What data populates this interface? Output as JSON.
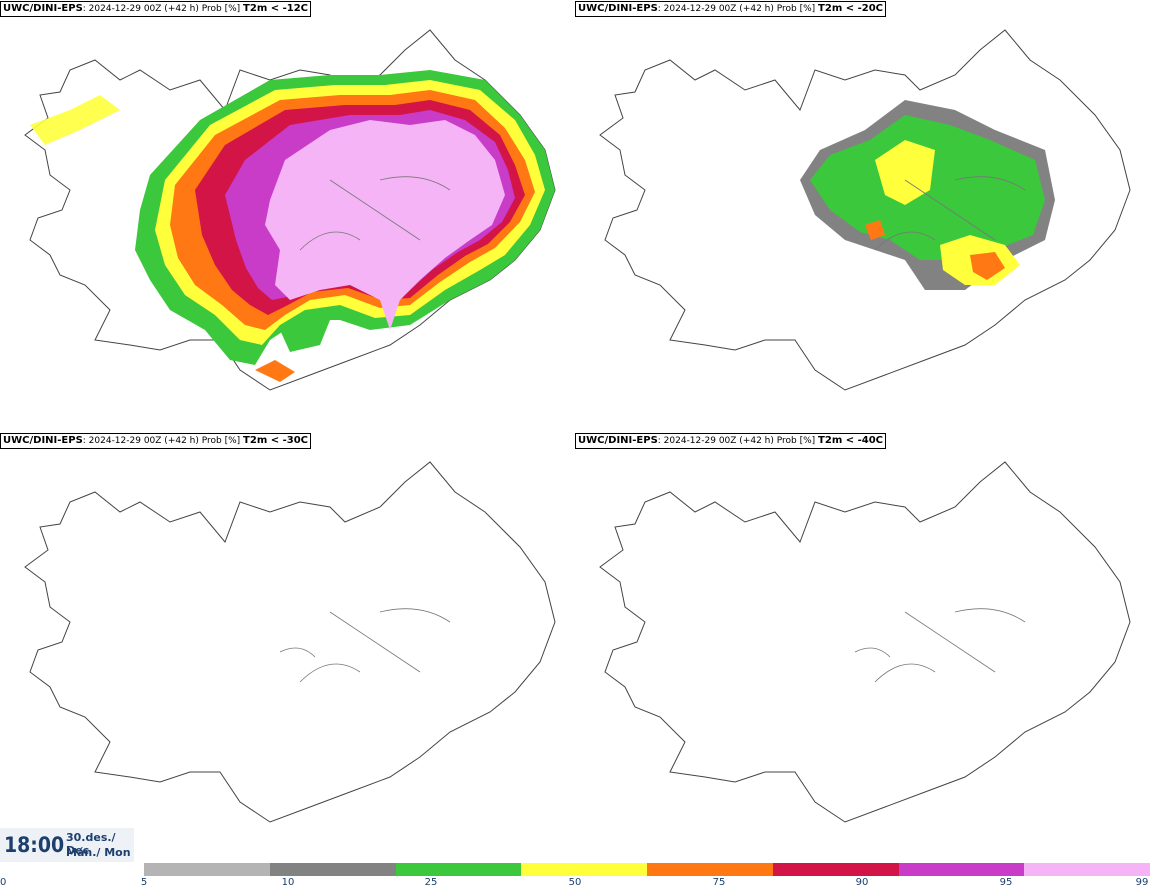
{
  "panels": [
    {
      "model": "UWC/DINI-EPS",
      "run": ": 2024-12-29 00Z (+42 h) Prob [%]",
      "variable": "T2m < -12C"
    },
    {
      "model": "UWC/DINI-EPS",
      "run": ": 2024-12-29 00Z (+42 h) Prob [%]",
      "variable": "T2m < -20C"
    },
    {
      "model": "UWC/DINI-EPS",
      "run": ": 2024-12-29 00Z (+42 h) Prob [%]",
      "variable": "T2m < -30C"
    },
    {
      "model": "UWC/DINI-EPS",
      "run": ": 2024-12-29 00Z (+42 h) Prob [%]",
      "variable": "T2m < -40C"
    }
  ],
  "valid_time": {
    "time": "18:00",
    "date_line": "30.des./ Dec",
    "day_line": "Mán./ Mon"
  },
  "legend": {
    "colors": [
      "#b4b4b4",
      "#828282",
      "#3cc83c",
      "#ffff3c",
      "#ff7814",
      "#d21446",
      "#c83cc8",
      "#f5b4f5"
    ],
    "ticks": [
      "0",
      "5",
      "10",
      "25",
      "50",
      "75",
      "90",
      "95",
      "99"
    ]
  }
}
